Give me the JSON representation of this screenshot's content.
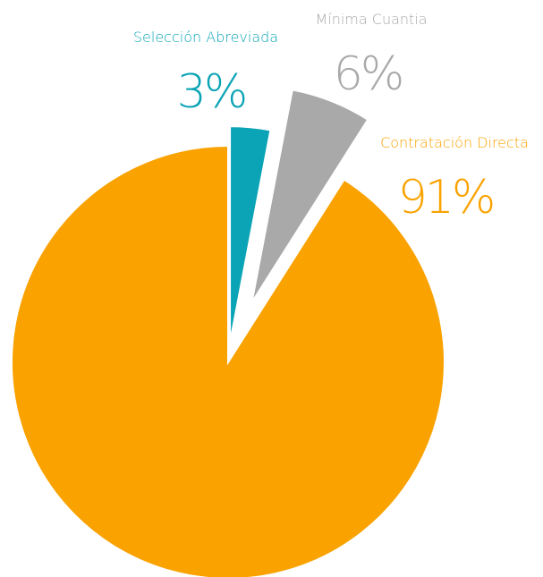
{
  "chart_data": {
    "type": "pie",
    "categories": [
      "Selección Abreviada",
      "Mínima Cuantia",
      "Contratación Directa"
    ],
    "values": [
      3,
      6,
      91
    ],
    "value_labels": [
      "3%",
      "6%",
      "91%"
    ],
    "colors": [
      "#0ba4b6",
      "#a9a9a9",
      "#f9a200"
    ]
  }
}
